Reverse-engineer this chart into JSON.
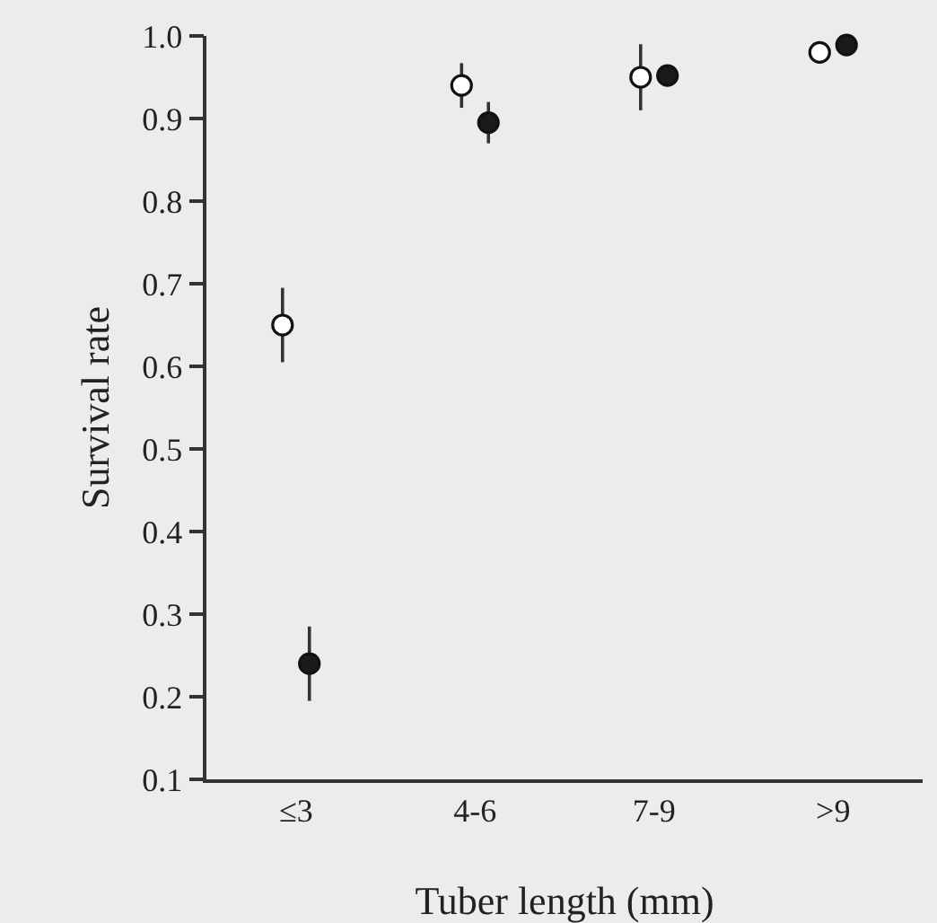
{
  "chart_data": {
    "type": "scatter",
    "xlabel": "Tuber length (mm)",
    "ylabel": "Survival rate",
    "categories": [
      "≤3",
      "4-6",
      "7-9",
      ">9"
    ],
    "series": [
      {
        "color": "#ffffff",
        "values": [
          0.65,
          0.94,
          0.95,
          0.98
        ],
        "errors": [
          0.045,
          0.027,
          0.04,
          null
        ]
      },
      {
        "color": "#1a1a1a",
        "values": [
          0.24,
          0.895,
          0.952,
          0.989
        ],
        "errors": [
          0.045,
          0.025,
          null,
          null
        ]
      }
    ],
    "ylim": [
      0.1,
      1.0
    ],
    "yticks": [
      0.1,
      0.2,
      0.3,
      0.4,
      0.5,
      0.6,
      0.7,
      0.8,
      0.9,
      {
        "value": 1,
        "label": "1.0"
      }
    ],
    "marker": "circle",
    "grid": false
  }
}
